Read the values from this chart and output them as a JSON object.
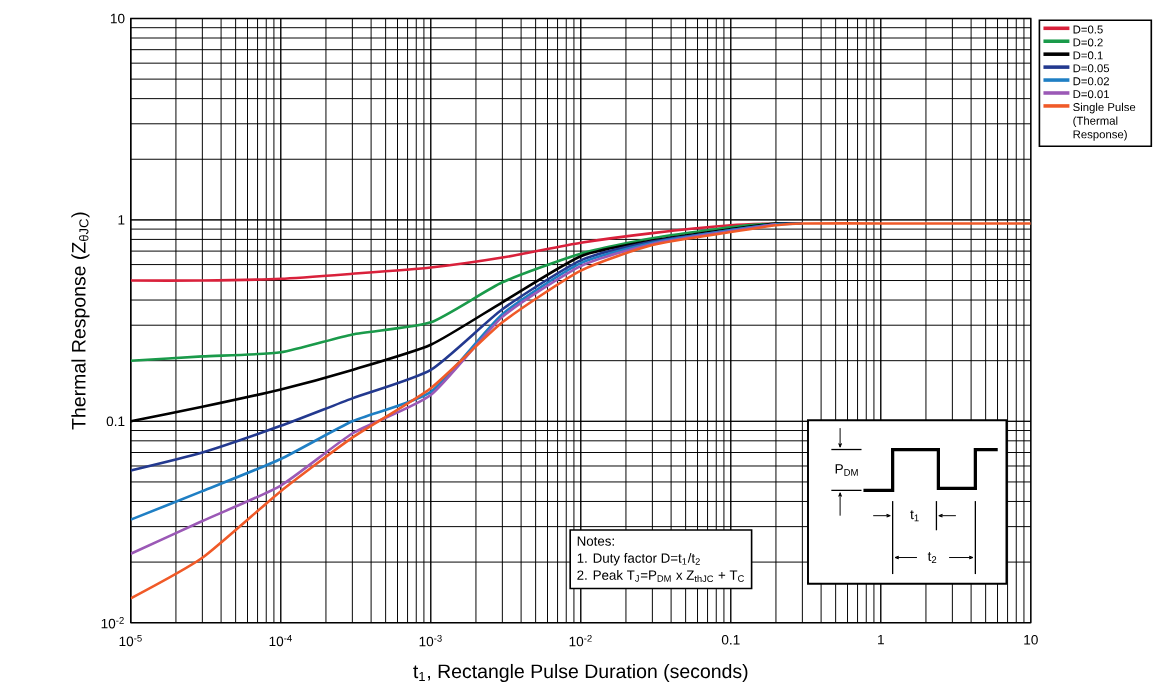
{
  "chart_data": {
    "type": "line",
    "xlabel": "t$_{1}$, Rectangle Pulse Duration (seconds)",
    "ylabel": "Thermal Response (Z$_{θJC}$)",
    "x": [
      1e-05,
      3e-05,
      0.0001,
      0.0003,
      0.001,
      0.003,
      0.01,
      0.03,
      0.1,
      0.2,
      0.3,
      1,
      10
    ],
    "series": [
      {
        "name": "D=0.5",
        "color": "#d9213b",
        "values": [
          0.5,
          0.5,
          0.51,
          0.54,
          0.58,
          0.65,
          0.77,
          0.86,
          0.94,
          0.96,
          0.96,
          null,
          null
        ]
      },
      {
        "name": "D=0.2",
        "color": "#1a9a4a",
        "values": [
          0.2,
          0.21,
          0.22,
          0.27,
          0.31,
          0.49,
          0.68,
          0.81,
          0.92,
          0.96,
          0.96,
          null,
          null
        ]
      },
      {
        "name": "D=0.1",
        "color": "#000000",
        "values": [
          0.1,
          0.118,
          0.144,
          0.18,
          0.24,
          0.39,
          0.66,
          0.79,
          0.9,
          0.96,
          0.96,
          null,
          null
        ]
      },
      {
        "name": "D=0.05",
        "color": "#23398f",
        "values": [
          0.057,
          0.07,
          0.095,
          0.13,
          0.18,
          0.36,
          0.63,
          0.78,
          0.89,
          0.95,
          0.96,
          null,
          null
        ]
      },
      {
        "name": "D=0.02",
        "color": "#1f7fc4",
        "values": [
          0.0325,
          0.045,
          0.065,
          0.1,
          0.14,
          0.34,
          0.61,
          0.77,
          0.89,
          0.95,
          0.96,
          null,
          null
        ]
      },
      {
        "name": "D=0.01",
        "color": "#9b59b6",
        "values": [
          0.022,
          0.032,
          0.048,
          0.087,
          0.135,
          0.33,
          0.59,
          0.76,
          0.88,
          0.95,
          null,
          null,
          null
        ]
      },
      {
        "name": "Single Pulse (Thermal Response)",
        "color": "#f05a28",
        "values": [
          0.0132,
          0.021,
          0.045,
          0.083,
          0.146,
          0.31,
          0.56,
          0.75,
          0.87,
          0.94,
          0.96,
          0.96,
          0.96
        ]
      }
    ],
    "xlim": [
      1e-05,
      10
    ],
    "ylim": [
      0.01,
      10
    ],
    "xticks": [
      {
        "value": 1e-05,
        "label": "10$^{-5}$"
      },
      {
        "value": 0.0001,
        "label": "10$^{-4}$"
      },
      {
        "value": 0.001,
        "label": "10$^{-3}$"
      },
      {
        "value": 0.01,
        "label": "10$^{-2}$"
      },
      0.1,
      1,
      10
    ],
    "yticks": [
      {
        "value": 0.01,
        "label": "10$^{-2}$"
      },
      0.1,
      1,
      10
    ],
    "log": "xy",
    "grid": true,
    "legend": "top right",
    "annotations": [
      "Notes:",
      "1.  Duty factor D=t$_{1}$/t$_{2}$",
      "2.  Peak T$_{J}$=P$_{DM}$ x Z$_{thJC}$ + T$_{C}$",
      "P$_{DM}$",
      "t$_{1}$",
      "t$_{2}$"
    ]
  }
}
